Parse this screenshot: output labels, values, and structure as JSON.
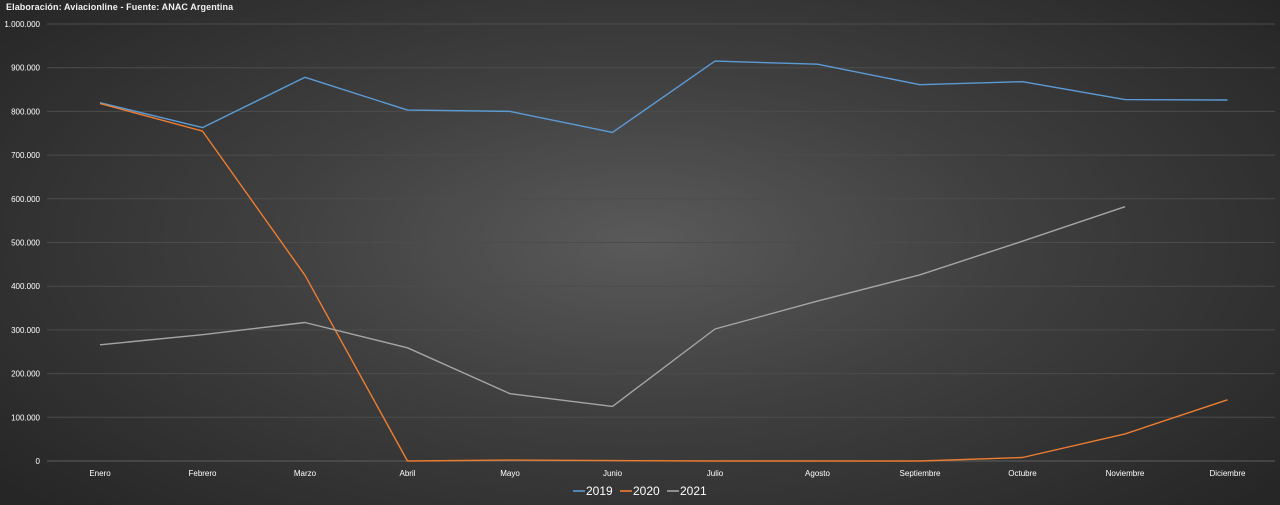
{
  "chart_data": {
    "type": "line",
    "title": "Elaboración: Aviacionline - Fuente: ANAC Argentina",
    "categories": [
      "Enero",
      "Febrero",
      "Marzo",
      "Abril",
      "Mayo",
      "Junio",
      "Julio",
      "Agosto",
      "Septiembre",
      "Octubre",
      "Noviembre",
      "Diciembre"
    ],
    "series": [
      {
        "name": "2019",
        "color": "#5b9bd5",
        "values": [
          820000,
          763000,
          878000,
          803000,
          800000,
          752000,
          915000,
          908000,
          861000,
          868000,
          827000,
          826000
        ]
      },
      {
        "name": "2020",
        "color": "#ed7d31",
        "values": [
          818000,
          755000,
          425000,
          0,
          2000,
          1000,
          0,
          0,
          0,
          8000,
          62000,
          140000
        ]
      },
      {
        "name": "2021",
        "color": "#a5a5a5",
        "values": [
          266000,
          289000,
          317000,
          259000,
          154000,
          125000,
          302000,
          366000,
          426000,
          503000,
          582000,
          null
        ]
      }
    ],
    "yticks": [
      "0",
      "100.000",
      "200.000",
      "300.000",
      "400.000",
      "500.000",
      "600.000",
      "700.000",
      "800.000",
      "900.000",
      "1.000.000"
    ],
    "ylim": [
      0,
      1000000
    ],
    "xlabel": "",
    "ylabel": "",
    "grid": true,
    "legend_position": "bottom"
  }
}
